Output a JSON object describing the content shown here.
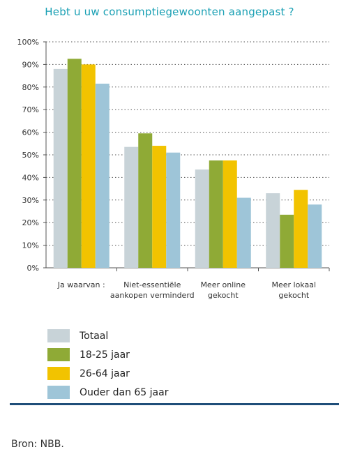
{
  "colors": {
    "title": "#1aa0b4",
    "rule": "#1f4e79",
    "series": [
      "#c8d3d8",
      "#8faa36",
      "#f2c300",
      "#9ec5d8"
    ]
  },
  "chart_data": {
    "type": "bar",
    "title": "Hebt u uw consumptiegewoonten aangepast ?",
    "categories": [
      "Ja waarvan :",
      "Niet-essentiële aankopen verminderd",
      "Meer online gekocht",
      "Meer lokaal gekocht"
    ],
    "category_lines": [
      [
        "Ja waarvan :"
      ],
      [
        "Niet-essentiële",
        "aankopen verminderd"
      ],
      [
        "Meer online",
        "gekocht"
      ],
      [
        "Meer lokaal",
        "gekocht"
      ]
    ],
    "series": [
      {
        "name": "Totaal",
        "values": [
          88,
          53.5,
          43.5,
          33
        ]
      },
      {
        "name": "18-25 jaar",
        "values": [
          92.5,
          59.5,
          47.5,
          23.5
        ]
      },
      {
        "name": "26-64 jaar",
        "values": [
          90,
          54,
          47.5,
          34.5
        ]
      },
      {
        "name": "Ouder dan 65 jaar",
        "values": [
          81.5,
          51,
          31,
          28
        ]
      }
    ],
    "yticks": [
      "0%",
      "10%",
      "20%",
      "30%",
      "40%",
      "50%",
      "60%",
      "70%",
      "80%",
      "90%",
      "100%"
    ],
    "ylim": [
      0,
      100
    ],
    "grid": "dotted horizontal",
    "legend_position": "bottom-left"
  },
  "source": "Bron: NBB."
}
